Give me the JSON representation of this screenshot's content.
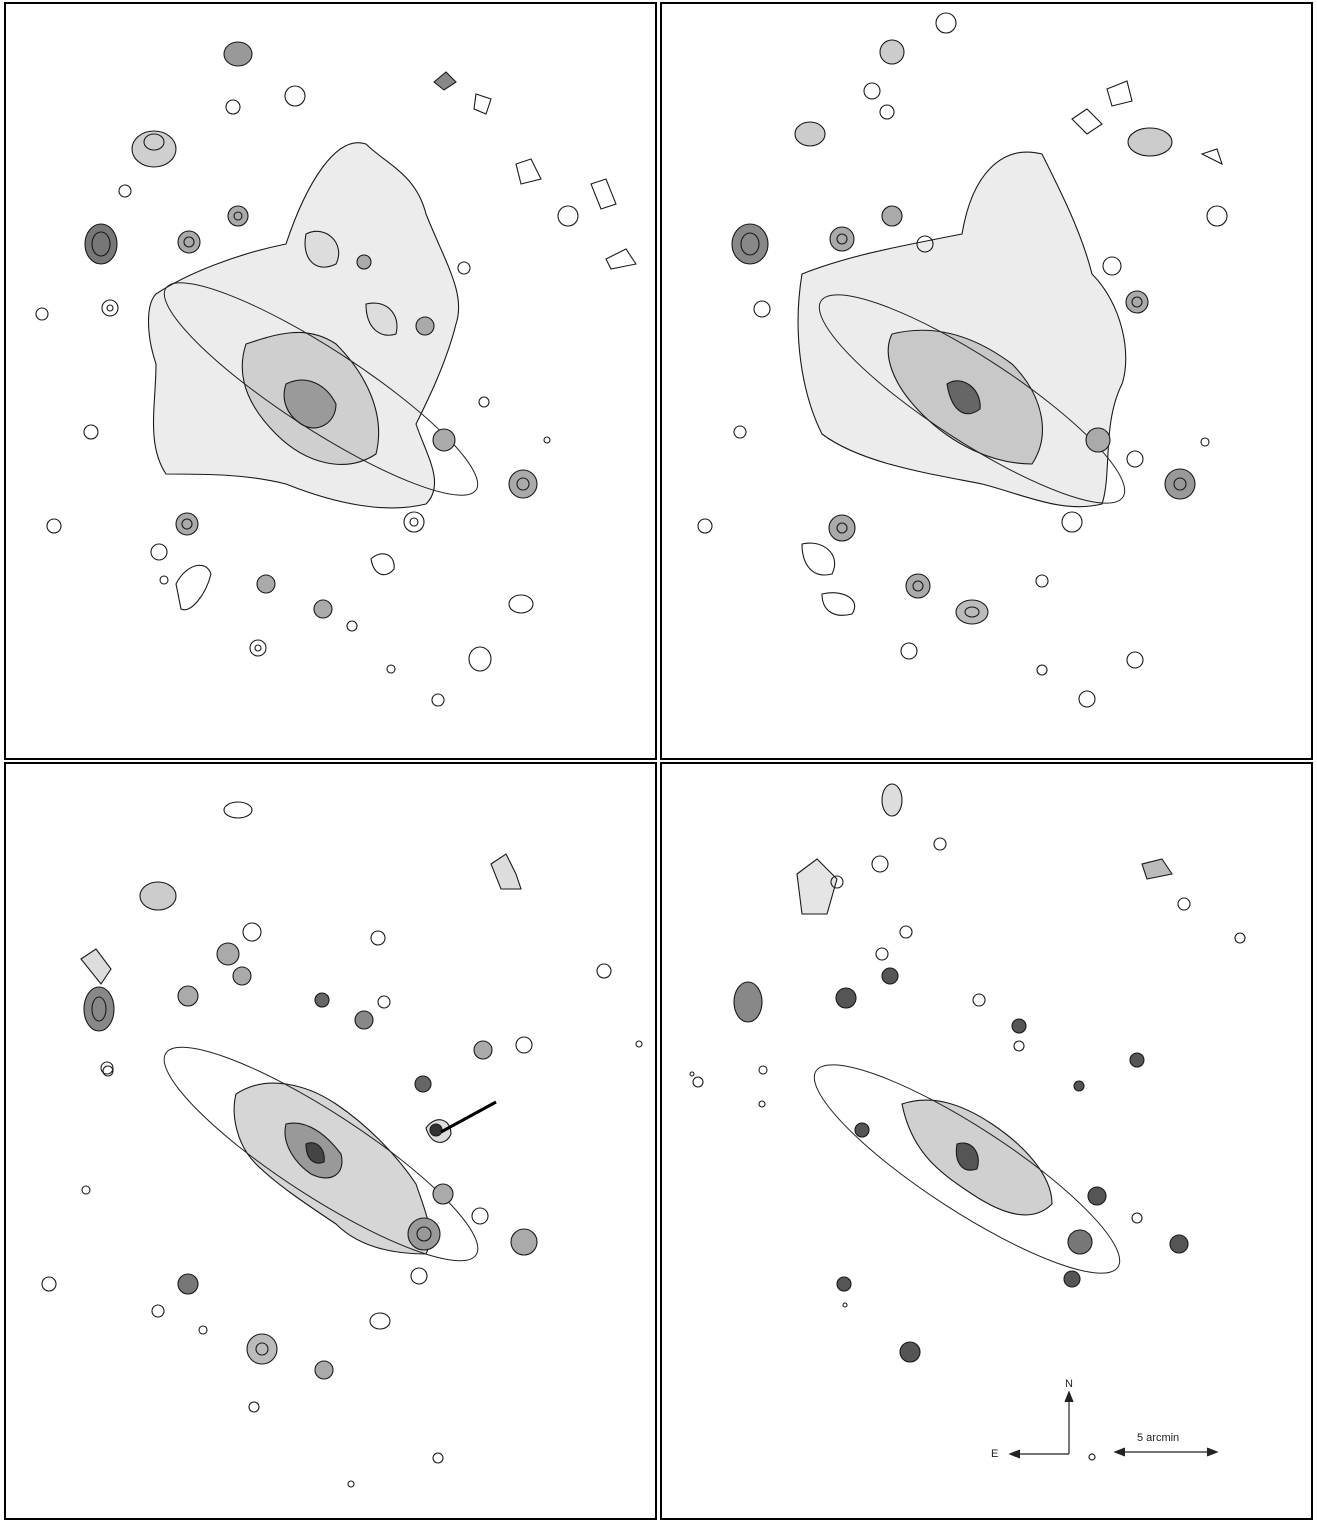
{
  "panels": [
    {
      "id": "top-left"
    },
    {
      "id": "top-right"
    },
    {
      "id": "bottom-left"
    },
    {
      "id": "bottom-right"
    }
  ],
  "compass": {
    "north_label": "N",
    "east_label": "E"
  },
  "scale_bar": {
    "label": "5 arcmin"
  },
  "colors": {
    "contour": "#1a1a1a",
    "fill_light": "#e6e6e6",
    "fill_mid": "#bdbdbd",
    "fill_dark": "#6e6e6e",
    "frame": "#000000"
  }
}
